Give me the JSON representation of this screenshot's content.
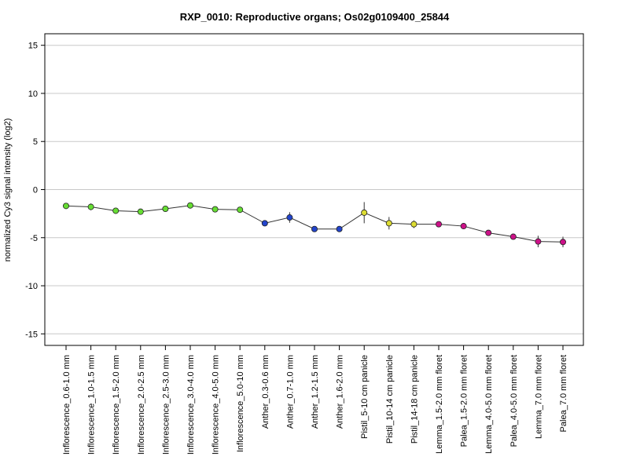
{
  "chart_data": {
    "type": "line",
    "title": "RXP_0010: Reproductive organs; Os02g0109400_25844",
    "xlabel": "",
    "ylabel": "normalized Cy3 signal intensity (log2)",
    "ylim": [
      -16.2,
      16.2
    ],
    "yticks": [
      -15,
      -10,
      -5,
      0,
      5,
      10,
      15
    ],
    "grid": "horizontal",
    "categories": [
      "Inflorescence_0.6-1.0 mm",
      "Inflorescence_1.0-1.5 mm",
      "Inflorescence_1.5-2.0 mm",
      "Inflorescence_2.0-2.5 mm",
      "Inflorescence_2.5-3.0 mm",
      "Inflorescence_3.0-4.0 mm",
      "Inflorescence_4.0-5.0 mm",
      "Inflorescence_5.0-10 mm",
      "Anther_0.3-0.6 mm",
      "Anther_0.7-1.0 mm",
      "Anther_1.2-1.5 mm",
      "Anther_1.6-2.0 mm",
      "Pistil_5-10 cm panicle",
      "Pistil_10-14 cm panicle",
      "Pistil_14-18 cm panicle",
      "Lemma_1.5-2.0 mm floret",
      "Palea_1.5-2.0 mm floret",
      "Lemma_4.0-5.0 mm floret",
      "Palea_4.0-5.0 mm floret",
      "Lemma_7.0 mm floret",
      "Palea_7.0 mm floret"
    ],
    "values": [
      -1.7,
      -1.8,
      -2.2,
      -2.3,
      -2.0,
      -1.65,
      -2.05,
      -2.1,
      -3.5,
      -2.9,
      -4.1,
      -4.1,
      -2.4,
      -3.5,
      -3.6,
      -3.6,
      -3.8,
      -4.5,
      -4.9,
      -5.4,
      -5.45
    ],
    "errors": [
      0.15,
      0.35,
      0.2,
      0.1,
      0.2,
      0.15,
      0.1,
      0.1,
      0.3,
      0.55,
      0.1,
      0.1,
      1.1,
      0.65,
      0.4,
      0.15,
      0.2,
      0.15,
      0.2,
      0.6,
      0.55
    ],
    "point_colors": [
      "#66dd33",
      "#66dd33",
      "#66dd33",
      "#66dd33",
      "#66dd33",
      "#66dd33",
      "#66dd33",
      "#66dd33",
      "#2244cc",
      "#2244cc",
      "#2244cc",
      "#2244cc",
      "#dddd33",
      "#dddd33",
      "#dddd33",
      "#cc1188",
      "#cc1188",
      "#cc1188",
      "#cc1188",
      "#cc1188",
      "#cc1188"
    ],
    "line_color": "#333333"
  }
}
